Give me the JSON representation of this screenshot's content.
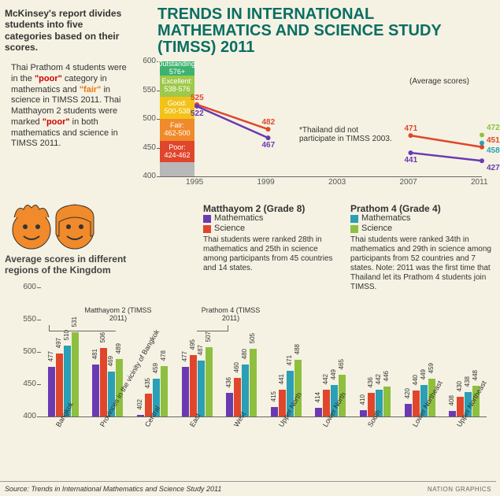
{
  "title": {
    "line1": "TRENDS IN INTERNATIONAL",
    "line2": "MATHEMATICS AND SCIENCE STUDY",
    "line3": "(TIMSS) 2011",
    "color": "#0a6e63",
    "fontsize": 20
  },
  "left_block": {
    "heading": "McKinsey's report divides students into five categories based on their scores.",
    "body_html": "Thai Prathom 4 students were in the <span class='poor-red'>\"poor\"</span> category in mathematics and <span class='fair-orange'>\"fair\"</span> in science in TIMSS 2011. Thai Matthayom 2 students were marked <span class='poor-red'>\"poor\"</span> in both mathematics and science in TIMSS 2011."
  },
  "line_chart": {
    "type": "line",
    "ylim": [
      400,
      600
    ],
    "ytick_step": 50,
    "yticks": [
      400,
      450,
      500,
      550,
      600
    ],
    "xlabels": [
      "1995",
      "1999",
      "2003",
      "2007",
      "2011"
    ],
    "avg_note": "(Average scores)",
    "note": "*Thailand did not participate in TIMSS 2003.",
    "categories": [
      {
        "name": "Outstanding:",
        "range": "576+",
        "lo": 576,
        "hi": 600,
        "color": "#3db36f"
      },
      {
        "name": "Excellent:",
        "range": "538-576",
        "lo": 538,
        "hi": 576,
        "color": "#9ec94a"
      },
      {
        "name": "Good:",
        "range": "500-538",
        "lo": 500,
        "hi": 538,
        "color": "#f3c218"
      },
      {
        "name": "Fair:",
        "range": "462-500",
        "lo": 462,
        "hi": 500,
        "color": "#f08a2a"
      },
      {
        "name": "Poor:",
        "range": "424-462",
        "lo": 424,
        "hi": 462,
        "color": "#e0462b"
      },
      {
        "name": "",
        "range": "",
        "lo": 400,
        "hi": 424,
        "color": "#b8b8b8"
      }
    ],
    "series_math_g8": {
      "color": "#6a3ab2",
      "points": [
        {
          "x": 0,
          "y": 522
        },
        {
          "x": 1,
          "y": 467
        },
        {
          "x": 3,
          "y": 441
        },
        {
          "x": 4,
          "y": 427
        }
      ]
    },
    "series_sci_g8": {
      "color": "#e0462b",
      "points": [
        {
          "x": 0,
          "y": 525
        },
        {
          "x": 1,
          "y": 482
        },
        {
          "x": 3,
          "y": 471
        },
        {
          "x": 4,
          "y": 451
        }
      ]
    },
    "series_math_g4": {
      "color": "#2a9fb5",
      "points": [
        {
          "x": 4,
          "y": 458
        }
      ]
    },
    "series_sci_g4": {
      "color": "#8fbf3f",
      "points": [
        {
          "x": 4,
          "y": 472
        }
      ]
    }
  },
  "grade8": {
    "heading": "Matthayom 2 (Grade 8)",
    "math_label": "Mathematics",
    "sci_label": "Science",
    "body": "Thai students were ranked 28th in mathematics and 25th in science among participants from 45 countries and 14 states.",
    "math_color": "#6a3ab2",
    "sci_color": "#e0462b"
  },
  "grade4": {
    "heading": "Prathom 4 (Grade 4)",
    "math_label": "Mathematics",
    "sci_label": "Science",
    "body": "Thai students were ranked 34th in mathematics and 29th in science among participants from 52 countries and 7 states. Note: 2011 was the first time that Thailand let its Prathom 4 students join TIMSS.",
    "math_color": "#2a9fb5",
    "sci_color": "#8fbf3f"
  },
  "regions_title": "Average scores in different regions of the Kingdom",
  "bar_chart": {
    "type": "bar",
    "ylim": [
      400,
      600
    ],
    "ytick_step": 50,
    "yticks": [
      400,
      450,
      500,
      550,
      600
    ],
    "regions": [
      "Bangkok",
      "Provinces in the vicinity of Bangkok",
      "Central",
      "East",
      "West",
      "Upper North",
      "Lower North",
      "South",
      "Lower Northeast",
      "Upper Northeast"
    ],
    "group_labels": {
      "g8": "Matthayom 2 (TIMSS 2011)",
      "g4": "Prathom 4 (TIMSS 2011)"
    },
    "colors": {
      "g8_math": "#6a3ab2",
      "g8_sci": "#e0462b",
      "g4_math": "#2a9fb5",
      "g4_sci": "#8fbf3f"
    },
    "series": {
      "g8_math": [
        477,
        481,
        402,
        477,
        436,
        415,
        414,
        410,
        420,
        408
      ],
      "g8_sci": [
        497,
        506,
        435,
        495,
        460,
        441,
        442,
        436,
        440,
        430
      ],
      "g4_math": [
        510,
        469,
        459,
        487,
        480,
        471,
        449,
        442,
        449,
        438
      ],
      "g4_sci": [
        531,
        489,
        478,
        507,
        505,
        488,
        465,
        446,
        459,
        448
      ]
    }
  },
  "source": "Source: Trends in International Mathematics and Science Study 2011",
  "credit": "NATION GRAPHICS",
  "face_color": "#f08a2a"
}
